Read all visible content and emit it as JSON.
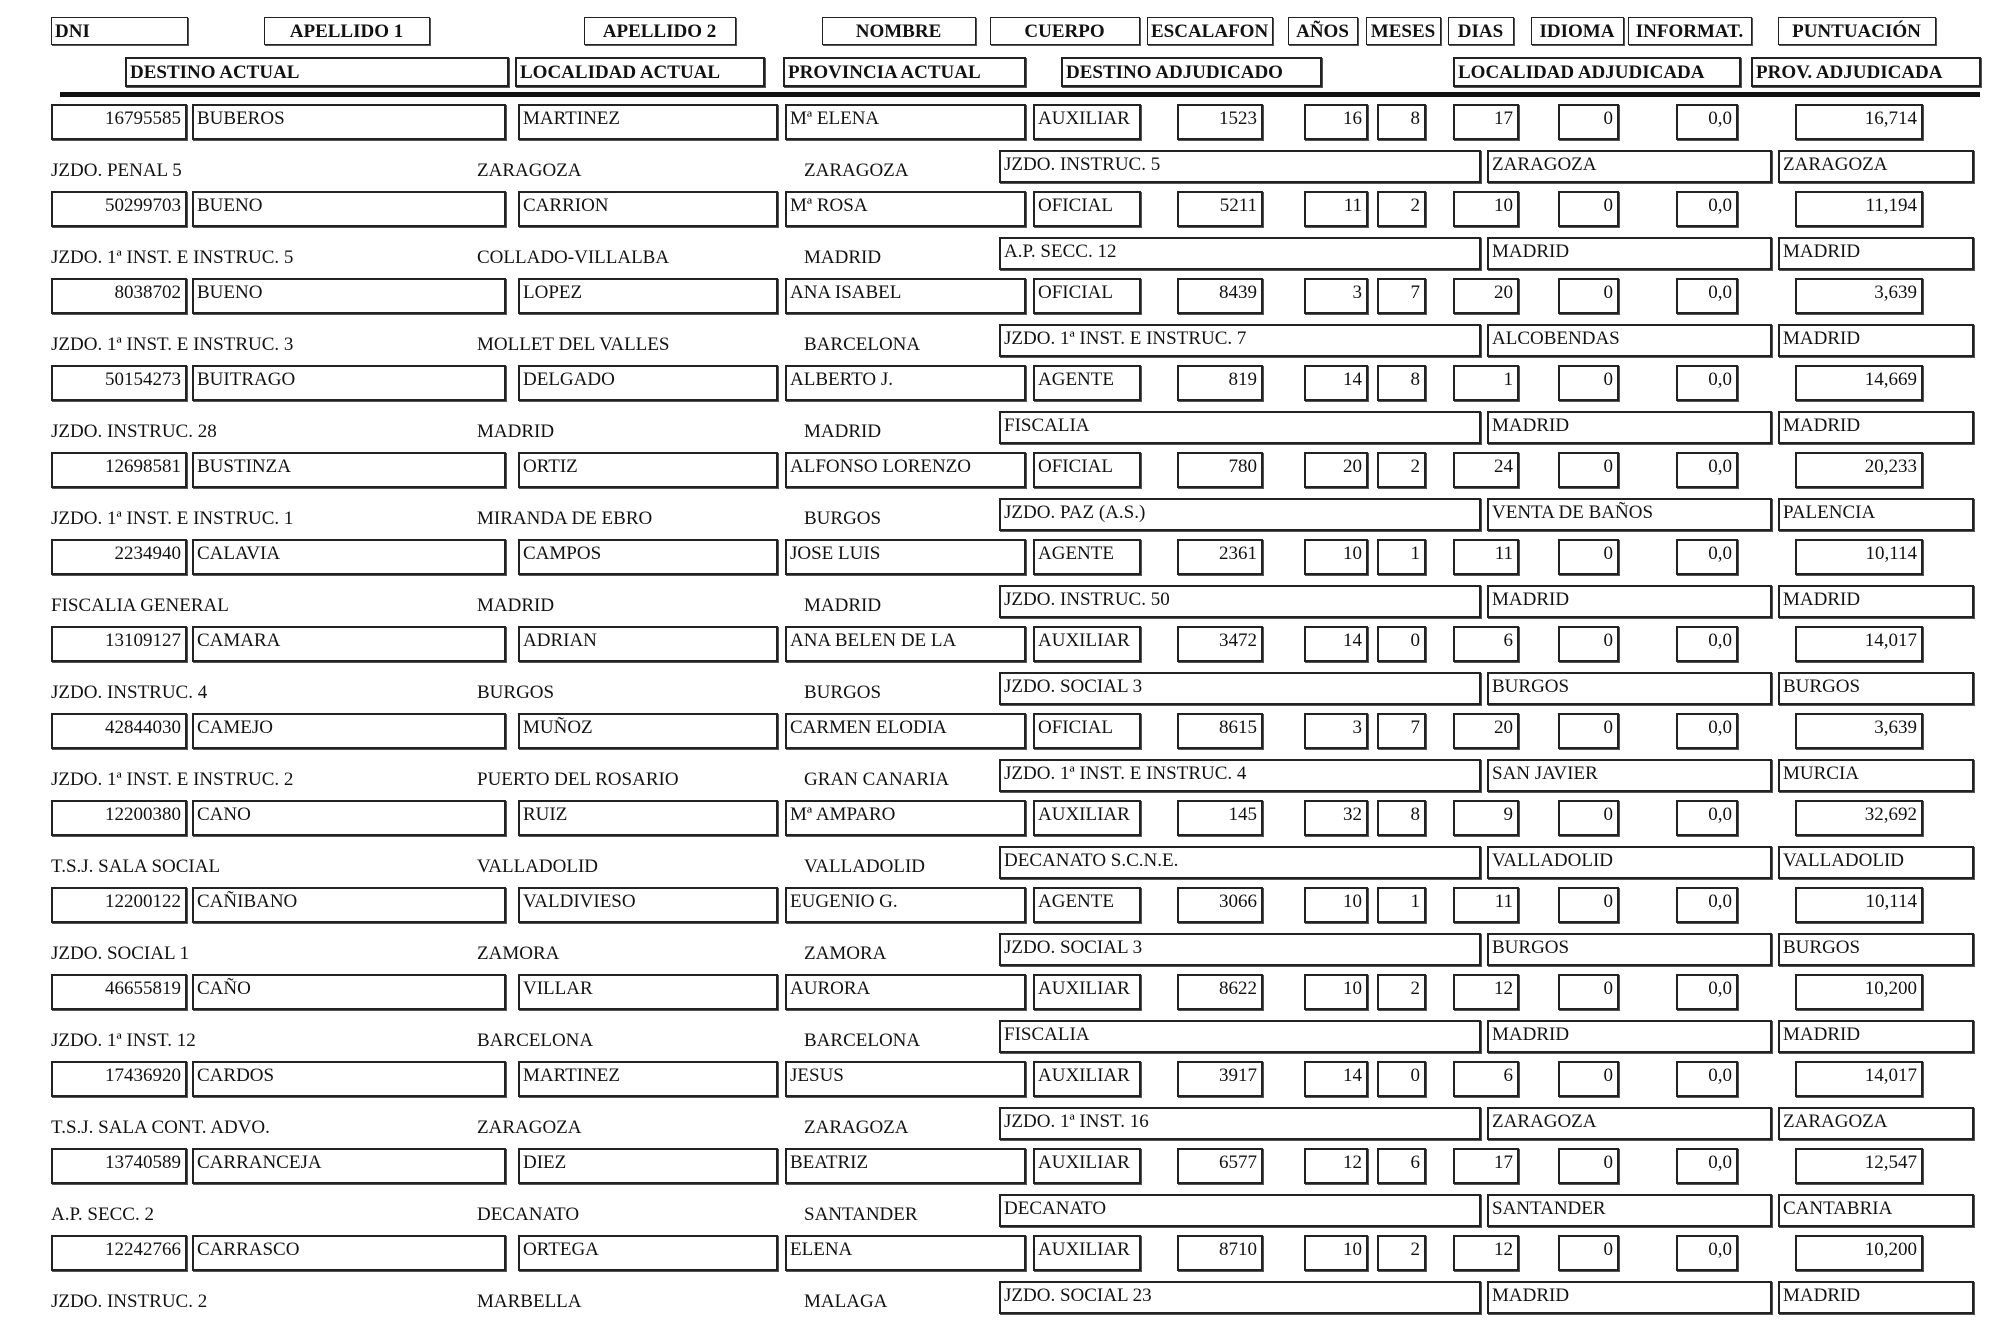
{
  "headers": {
    "row1": [
      "DNI",
      "APELLIDO 1",
      "APELLIDO 2",
      "NOMBRE",
      "CUERPO",
      "ESCALAFON",
      "AÑOS",
      "MESES",
      "DIAS",
      "IDIOMA",
      "INFORMAT.",
      "PUNTUACIÓN"
    ],
    "row2": [
      "DESTINO ACTUAL",
      "LOCALIDAD ACTUAL",
      "PROVINCIA ACTUAL",
      "DESTINO ADJUDICADO",
      "LOCALIDAD ADJUDICADA",
      "PROV. ADJUDICADA"
    ]
  },
  "records": [
    {
      "dni": "16795585",
      "apellido1": "BUBEROS",
      "apellido2": "MARTINEZ",
      "nombre": "Mª ELENA",
      "cuerpo": "AUXILIAR",
      "escalafon": "1523",
      "anos": "16",
      "meses": "8",
      "dias": "17",
      "idioma": "0",
      "informat": "0,0",
      "puntuacion": "16,714",
      "destino_actual": "JZDO. PENAL 5",
      "localidad_actual": "ZARAGOZA",
      "provincia_actual": "ZARAGOZA",
      "destino_adjudicado": "JZDO. INSTRUC. 5",
      "localidad_adjudicada": "ZARAGOZA",
      "prov_adjudicada": "ZARAGOZA"
    },
    {
      "dni": "50299703",
      "apellido1": "BUENO",
      "apellido2": "CARRION",
      "nombre": "Mª ROSA",
      "cuerpo": "OFICIAL",
      "escalafon": "5211",
      "anos": "11",
      "meses": "2",
      "dias": "10",
      "idioma": "0",
      "informat": "0,0",
      "puntuacion": "11,194",
      "destino_actual": "JZDO. 1ª INST. E INSTRUC. 5",
      "localidad_actual": "COLLADO-VILLALBA",
      "provincia_actual": "MADRID",
      "destino_adjudicado": "A.P. SECC. 12",
      "localidad_adjudicada": "MADRID",
      "prov_adjudicada": "MADRID"
    },
    {
      "dni": "8038702",
      "apellido1": "BUENO",
      "apellido2": "LOPEZ",
      "nombre": "ANA ISABEL",
      "cuerpo": "OFICIAL",
      "escalafon": "8439",
      "anos": "3",
      "meses": "7",
      "dias": "20",
      "idioma": "0",
      "informat": "0,0",
      "puntuacion": "3,639",
      "destino_actual": "JZDO. 1ª INST. E INSTRUC. 3",
      "localidad_actual": "MOLLET DEL VALLES",
      "provincia_actual": "BARCELONA",
      "destino_adjudicado": "JZDO. 1ª INST. E INSTRUC. 7",
      "localidad_adjudicada": "ALCOBENDAS",
      "prov_adjudicada": "MADRID"
    },
    {
      "dni": "50154273",
      "apellido1": "BUITRAGO",
      "apellido2": "DELGADO",
      "nombre": "ALBERTO J.",
      "cuerpo": "AGENTE",
      "escalafon": "819",
      "anos": "14",
      "meses": "8",
      "dias": "1",
      "idioma": "0",
      "informat": "0,0",
      "puntuacion": "14,669",
      "destino_actual": "JZDO. INSTRUC. 28",
      "localidad_actual": "MADRID",
      "provincia_actual": "MADRID",
      "destino_adjudicado": "FISCALIA",
      "localidad_adjudicada": "MADRID",
      "prov_adjudicada": "MADRID"
    },
    {
      "dni": "12698581",
      "apellido1": "BUSTINZA",
      "apellido2": "ORTIZ",
      "nombre": "ALFONSO LORENZO",
      "cuerpo": "OFICIAL",
      "escalafon": "780",
      "anos": "20",
      "meses": "2",
      "dias": "24",
      "idioma": "0",
      "informat": "0,0",
      "puntuacion": "20,233",
      "destino_actual": "JZDO. 1ª INST. E INSTRUC. 1",
      "localidad_actual": "MIRANDA DE EBRO",
      "provincia_actual": "BURGOS",
      "destino_adjudicado": "JZDO. PAZ (A.S.)",
      "localidad_adjudicada": "VENTA DE BAÑOS",
      "prov_adjudicada": "PALENCIA"
    },
    {
      "dni": "2234940",
      "apellido1": "CALAVIA",
      "apellido2": "CAMPOS",
      "nombre": "JOSE LUIS",
      "cuerpo": "AGENTE",
      "escalafon": "2361",
      "anos": "10",
      "meses": "1",
      "dias": "11",
      "idioma": "0",
      "informat": "0,0",
      "puntuacion": "10,114",
      "destino_actual": "FISCALIA GENERAL",
      "localidad_actual": "MADRID",
      "provincia_actual": "MADRID",
      "destino_adjudicado": "JZDO. INSTRUC. 50",
      "localidad_adjudicada": "MADRID",
      "prov_adjudicada": "MADRID"
    },
    {
      "dni": "13109127",
      "apellido1": "CAMARA",
      "apellido2": "ADRIAN",
      "nombre": "ANA BELEN DE LA",
      "cuerpo": "AUXILIAR",
      "escalafon": "3472",
      "anos": "14",
      "meses": "0",
      "dias": "6",
      "idioma": "0",
      "informat": "0,0",
      "puntuacion": "14,017",
      "destino_actual": "JZDO. INSTRUC. 4",
      "localidad_actual": "BURGOS",
      "provincia_actual": "BURGOS",
      "destino_adjudicado": "JZDO. SOCIAL 3",
      "localidad_adjudicada": "BURGOS",
      "prov_adjudicada": "BURGOS"
    },
    {
      "dni": "42844030",
      "apellido1": "CAMEJO",
      "apellido2": "MUÑOZ",
      "nombre": "CARMEN ELODIA",
      "cuerpo": "OFICIAL",
      "escalafon": "8615",
      "anos": "3",
      "meses": "7",
      "dias": "20",
      "idioma": "0",
      "informat": "0,0",
      "puntuacion": "3,639",
      "destino_actual": "JZDO. 1ª INST. E INSTRUC. 2",
      "localidad_actual": "PUERTO DEL ROSARIO",
      "provincia_actual": "GRAN CANARIA",
      "destino_adjudicado": "JZDO. 1ª INST. E INSTRUC. 4",
      "localidad_adjudicada": "SAN JAVIER",
      "prov_adjudicada": "MURCIA"
    },
    {
      "dni": "12200380",
      "apellido1": "CANO",
      "apellido2": "RUIZ",
      "nombre": "Mª AMPARO",
      "cuerpo": "AUXILIAR",
      "escalafon": "145",
      "anos": "32",
      "meses": "8",
      "dias": "9",
      "idioma": "0",
      "informat": "0,0",
      "puntuacion": "32,692",
      "destino_actual": "T.S.J. SALA SOCIAL",
      "localidad_actual": "VALLADOLID",
      "provincia_actual": "VALLADOLID",
      "destino_adjudicado": "DECANATO S.C.N.E.",
      "localidad_adjudicada": "VALLADOLID",
      "prov_adjudicada": "VALLADOLID"
    },
    {
      "dni": "12200122",
      "apellido1": "CAÑIBANO",
      "apellido2": "VALDIVIESO",
      "nombre": "EUGENIO G.",
      "cuerpo": "AGENTE",
      "escalafon": "3066",
      "anos": "10",
      "meses": "1",
      "dias": "11",
      "idioma": "0",
      "informat": "0,0",
      "puntuacion": "10,114",
      "destino_actual": "JZDO. SOCIAL 1",
      "localidad_actual": "ZAMORA",
      "provincia_actual": "ZAMORA",
      "destino_adjudicado": "JZDO. SOCIAL 3",
      "localidad_adjudicada": "BURGOS",
      "prov_adjudicada": "BURGOS"
    },
    {
      "dni": "46655819",
      "apellido1": "CAÑO",
      "apellido2": "VILLAR",
      "nombre": "AURORA",
      "cuerpo": "AUXILIAR",
      "escalafon": "8622",
      "anos": "10",
      "meses": "2",
      "dias": "12",
      "idioma": "0",
      "informat": "0,0",
      "puntuacion": "10,200",
      "destino_actual": "JZDO. 1ª INST. 12",
      "localidad_actual": "BARCELONA",
      "provincia_actual": "BARCELONA",
      "destino_adjudicado": "FISCALIA",
      "localidad_adjudicada": "MADRID",
      "prov_adjudicada": "MADRID"
    },
    {
      "dni": "17436920",
      "apellido1": "CARDOS",
      "apellido2": "MARTINEZ",
      "nombre": "JESUS",
      "cuerpo": "AUXILIAR",
      "escalafon": "3917",
      "anos": "14",
      "meses": "0",
      "dias": "6",
      "idioma": "0",
      "informat": "0,0",
      "puntuacion": "14,017",
      "destino_actual": "T.S.J. SALA CONT. ADVO.",
      "localidad_actual": "ZARAGOZA",
      "provincia_actual": "ZARAGOZA",
      "destino_adjudicado": "JZDO. 1ª INST. 16",
      "localidad_adjudicada": "ZARAGOZA",
      "prov_adjudicada": "ZARAGOZA"
    },
    {
      "dni": "13740589",
      "apellido1": "CARRANCEJA",
      "apellido2": "DIEZ",
      "nombre": "BEATRIZ",
      "cuerpo": "AUXILIAR",
      "escalafon": "6577",
      "anos": "12",
      "meses": "6",
      "dias": "17",
      "idioma": "0",
      "informat": "0,0",
      "puntuacion": "12,547",
      "destino_actual": "A.P. SECC. 2",
      "localidad_actual": "DECANATO",
      "provincia_actual": "SANTANDER",
      "destino_adjudicado": "DECANATO",
      "localidad_adjudicada": "SANTANDER",
      "prov_adjudicada": "CANTABRIA"
    },
    {
      "dni": "12242766",
      "apellido1": "CARRASCO",
      "apellido2": "ORTEGA",
      "nombre": "ELENA",
      "cuerpo": "AUXILIAR",
      "escalafon": "8710",
      "anos": "10",
      "meses": "2",
      "dias": "12",
      "idioma": "0",
      "informat": "0,0",
      "puntuacion": "10,200",
      "destino_actual": "JZDO. INSTRUC. 2",
      "localidad_actual": "MARBELLA",
      "provincia_actual": "MALAGA",
      "destino_adjudicado": "JZDO. SOCIAL 23",
      "localidad_adjudicada": "MADRID",
      "prov_adjudicada": "MADRID"
    }
  ]
}
